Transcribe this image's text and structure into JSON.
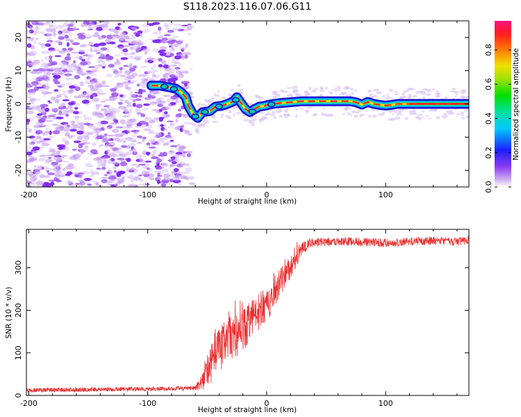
{
  "figure_title": "S118.2023.116.07.06.G11",
  "chart_data": [
    {
      "type": "heatmap",
      "title": "",
      "xlabel": "Height of straight line (km)",
      "ylabel": "Frequency (Hz)",
      "xlim": [
        -202,
        170
      ],
      "ylim": [
        -25,
        25
      ],
      "x_ticks": [
        -200,
        -100,
        0,
        100
      ],
      "x_tick_labels": [
        "-200",
        "-100",
        "0",
        "100"
      ],
      "y_ticks": [
        -20,
        -10,
        0,
        10,
        20
      ],
      "y_tick_labels": [
        "-20",
        "-10",
        "0",
        "10",
        "20"
      ],
      "noise_region": {
        "x_start": -202,
        "x_end": -66
      },
      "signal_line": {
        "x": [
          -97,
          -90,
          -82,
          -76,
          -72,
          -68,
          -66,
          -62,
          -58,
          -54,
          -48,
          -43,
          -38,
          -33,
          -28,
          -25,
          -22,
          -18,
          -14,
          -10,
          -6,
          -2,
          2,
          6,
          10,
          20,
          30,
          40,
          50,
          60,
          70,
          75,
          80,
          85,
          90,
          95,
          100,
          105,
          110,
          120,
          130,
          140,
          150,
          160,
          170
        ],
        "y": [
          5.5,
          5.5,
          5,
          4.5,
          3.5,
          2,
          -0.5,
          -3,
          -4.2,
          -2.5,
          -2.2,
          -0.8,
          -0.6,
          0,
          0.8,
          2,
          0.5,
          -1.5,
          -2.5,
          -1.5,
          -0.8,
          -0.6,
          -0.2,
          0,
          0.2,
          0.5,
          0.8,
          0.8,
          0.8,
          0.8,
          0.8,
          0.5,
          -0.2,
          0.6,
          0,
          -0.3,
          -0.5,
          -0.3,
          0,
          0,
          0,
          0,
          0,
          0,
          0
        ]
      },
      "colorbar": {
        "label": "Normalized spectral amplitude",
        "range": [
          0,
          0.97
        ],
        "ticks": [
          0.0,
          0.2,
          0.4,
          0.6,
          0.8
        ],
        "tick_labels": [
          "0.0",
          "0.2",
          "0.4",
          "0.6",
          "0.8"
        ]
      }
    },
    {
      "type": "line",
      "title": "",
      "xlabel": "Height of straight line (km)",
      "ylabel": "SNR (10 * v/v)",
      "xlim": [
        -202,
        170
      ],
      "ylim": [
        0,
        390
      ],
      "x_ticks": [
        -200,
        -100,
        0,
        100
      ],
      "x_tick_labels": [
        "-200",
        "-100",
        "0",
        "100"
      ],
      "y_ticks": [
        0,
        100,
        200,
        300
      ],
      "y_tick_labels": [
        "0",
        "100",
        "200",
        "300"
      ],
      "series": [
        {
          "name": "SNR",
          "color": "#e8312f",
          "x": [
            -202,
            -180,
            -160,
            -140,
            -120,
            -100,
            -80,
            -60,
            -55,
            -50,
            -45,
            -40,
            -35,
            -30,
            -25,
            -20,
            -15,
            -10,
            -5,
            0,
            5,
            10,
            15,
            20,
            25,
            30,
            35,
            40,
            50,
            60,
            70,
            80,
            90,
            100,
            110,
            120,
            130,
            140,
            150,
            160,
            170
          ],
          "values": [
            12,
            13,
            14,
            14,
            15,
            15,
            16,
            18,
            30,
            60,
            95,
            110,
            125,
            130,
            145,
            150,
            175,
            185,
            200,
            210,
            235,
            260,
            280,
            300,
            320,
            345,
            355,
            360,
            360,
            362,
            362,
            360,
            360,
            358,
            360,
            362,
            362,
            364,
            362,
            362,
            365
          ],
          "noise_amp": [
            5,
            5,
            6,
            5,
            5,
            5,
            5,
            6,
            15,
            35,
            50,
            55,
            55,
            55,
            50,
            50,
            50,
            45,
            45,
            40,
            40,
            35,
            30,
            25,
            20,
            15,
            12,
            10,
            10,
            10,
            10,
            10,
            10,
            10,
            10,
            10,
            10,
            10,
            10,
            10,
            10
          ]
        }
      ]
    }
  ]
}
